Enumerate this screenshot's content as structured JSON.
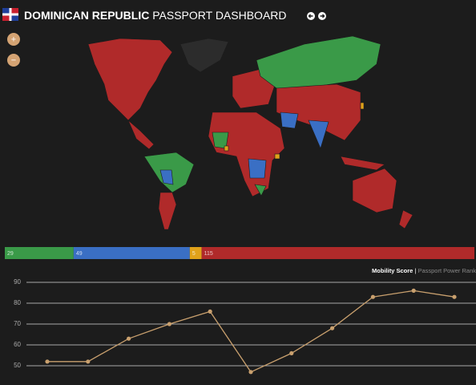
{
  "header": {
    "title_bold": "DOMINICAN REPUBLIC",
    "title_rest": "PASSPORT DASHBOARD"
  },
  "zoom_buttons": {
    "zoom_in": "+",
    "zoom_out": "−"
  },
  "chart_data": [
    {
      "type": "stacked_bar",
      "values": [
        29,
        49,
        5,
        115
      ],
      "colors": [
        "#3a9a48",
        "#3a6fc4",
        "#e0a21a",
        "#b02a2a"
      ]
    },
    {
      "type": "line",
      "categories": [
        null,
        null,
        null,
        null,
        null,
        null,
        null,
        null,
        null,
        null,
        null
      ],
      "series": [
        {
          "name": "Mobility Score",
          "color": "#c9a06e",
          "values": [
            52,
            52,
            63,
            70,
            76,
            47,
            56,
            68,
            83,
            86,
            83
          ]
        }
      ],
      "legend_separator": "|",
      "legend_secondary": "Passport Power Rank",
      "ylim": [
        45,
        90
      ],
      "yticks": [
        50,
        60,
        70,
        80,
        90
      ],
      "grid": true
    }
  ]
}
